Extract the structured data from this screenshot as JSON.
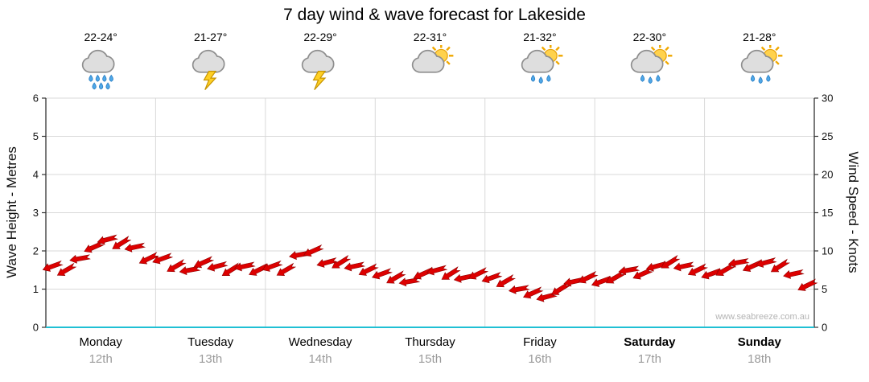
{
  "title": "7 day wind & wave forecast for Lakeside",
  "watermark": "www.seabreeze.com.au",
  "days": [
    {
      "temp": "22-24°",
      "name": "Monday",
      "date": "12th",
      "icon": "rain-cloud",
      "weekend": false
    },
    {
      "temp": "21-27°",
      "name": "Tuesday",
      "date": "13th",
      "icon": "storm",
      "weekend": false
    },
    {
      "temp": "22-29°",
      "name": "Wednesday",
      "date": "14th",
      "icon": "storm",
      "weekend": false
    },
    {
      "temp": "22-31°",
      "name": "Thursday",
      "date": "15th",
      "icon": "sun-cloud",
      "weekend": false
    },
    {
      "temp": "21-32°",
      "name": "Friday",
      "date": "16th",
      "icon": "sun-cloud-rain",
      "weekend": false
    },
    {
      "temp": "22-30°",
      "name": "Saturday",
      "date": "17th",
      "icon": "sun-cloud-rain",
      "weekend": true
    },
    {
      "temp": "21-28°",
      "name": "Sunday",
      "date": "18th",
      "icon": "sun-cloud-rain",
      "weekend": true
    }
  ],
  "chart_data": {
    "type": "line",
    "title": "7 day wind & wave forecast for Lakeside",
    "xlabel": "",
    "categories": [
      "Monday 12th",
      "Tuesday 13th",
      "Wednesday 14th",
      "Thursday 15th",
      "Friday 16th",
      "Saturday 17th",
      "Sunday 18th"
    ],
    "points_per_day": 8,
    "left_axis": {
      "label": "Wave Height - Metres",
      "min": 0,
      "max": 6,
      "ticks": [
        0,
        1,
        2,
        3,
        4,
        5,
        6
      ]
    },
    "right_axis": {
      "label": "Wind Speed - Knots",
      "min": 0,
      "max": 30,
      "ticks": [
        0,
        5,
        10,
        15,
        20,
        25,
        30
      ]
    },
    "series": [
      {
        "name": "Wind Speed (knots)",
        "axis": "right",
        "values": [
          8,
          7.5,
          9,
          10.5,
          11.5,
          11,
          10.5,
          9,
          9,
          8,
          7.5,
          8.5,
          8,
          7.5,
          8,
          7.5,
          8,
          7.5,
          9.5,
          10,
          8.5,
          8.5,
          8,
          7.5,
          7,
          6.5,
          6,
          7,
          7.5,
          7,
          6.5,
          7,
          6.5,
          6,
          5,
          4.5,
          4,
          5,
          6,
          6.5,
          6,
          6.5,
          7.5,
          7,
          8,
          8.5,
          8,
          7.5,
          7,
          7.5,
          8.5,
          8,
          8.5,
          8,
          7,
          5.5
        ]
      },
      {
        "name": "Wave Height (metres)",
        "axis": "left",
        "values": [
          1.6,
          1.5,
          1.8,
          2.1,
          2.3,
          2.2,
          2.1,
          1.8,
          1.8,
          1.6,
          1.5,
          1.7,
          1.6,
          1.5,
          1.6,
          1.5,
          1.6,
          1.5,
          1.9,
          2.0,
          1.7,
          1.7,
          1.6,
          1.5,
          1.4,
          1.3,
          1.2,
          1.4,
          1.5,
          1.4,
          1.3,
          1.4,
          1.3,
          1.2,
          1.0,
          0.9,
          0.8,
          1.0,
          1.2,
          1.3,
          1.2,
          1.3,
          1.5,
          1.4,
          1.6,
          1.7,
          1.6,
          1.5,
          1.4,
          1.5,
          1.7,
          1.6,
          1.7,
          1.6,
          1.4,
          1.1
        ]
      }
    ],
    "marker": "wind-arrow",
    "marker_color": "#DD0000",
    "marker_outline": "#8F0000",
    "arrow_angle_pattern_deg": [
      160,
      150,
      170,
      156,
      165,
      148,
      168,
      154
    ],
    "gridline_color": "#D9D9D9",
    "axis_color": "#333333",
    "baseline_color": "#1FC0D4",
    "grid": true,
    "legend": "none"
  }
}
